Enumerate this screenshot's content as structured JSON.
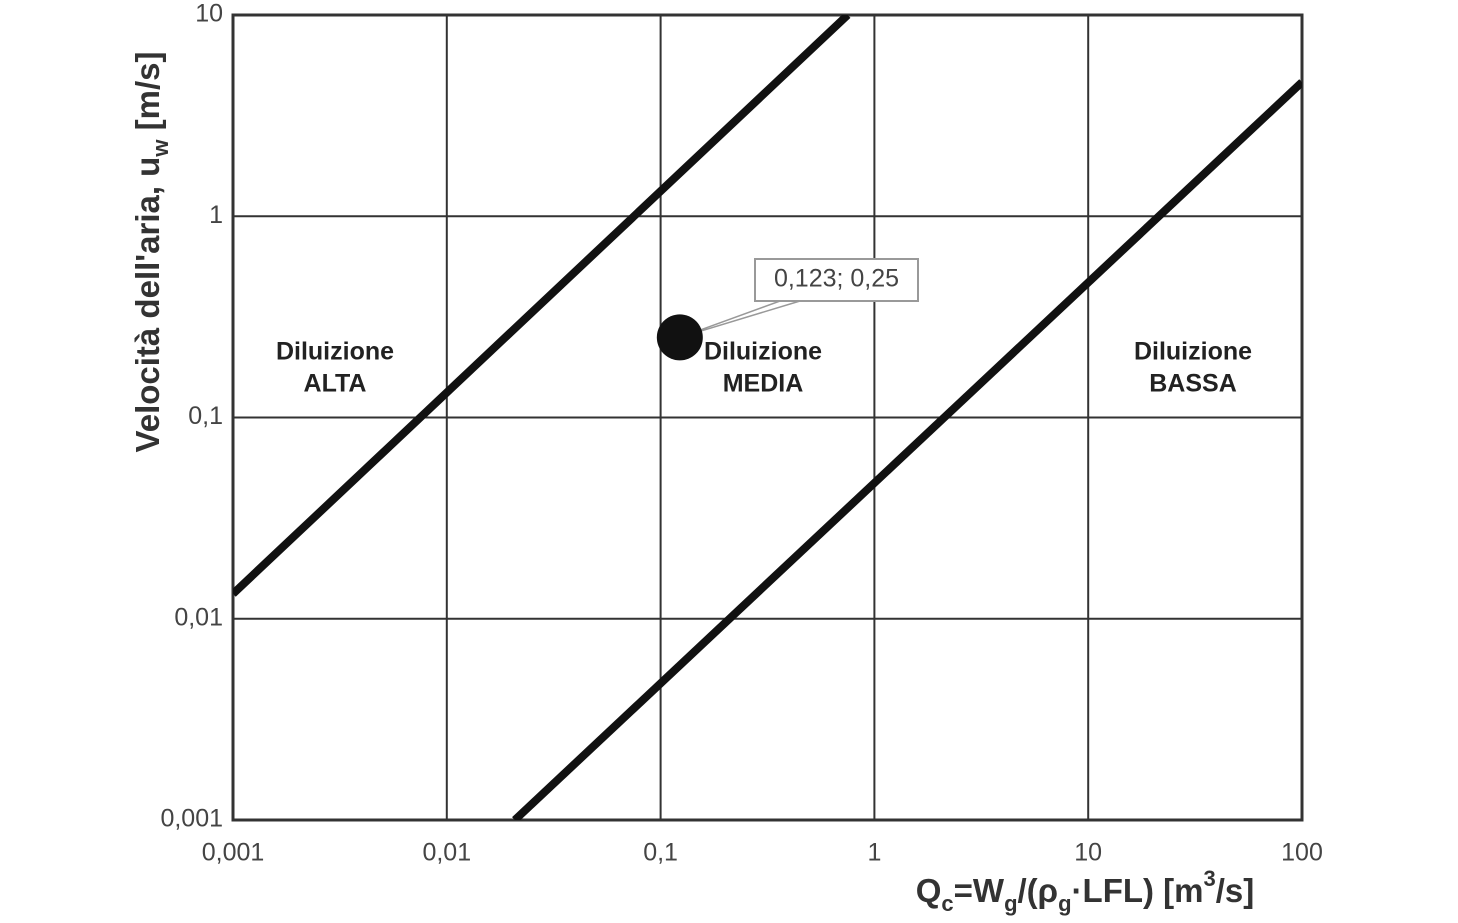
{
  "chart_data": {
    "type": "line",
    "xlog": true,
    "ylog": true,
    "grid": true,
    "xlim": [
      0.001,
      100
    ],
    "ylim": [
      0.001,
      10
    ],
    "xticks": [
      {
        "value": 0.001,
        "label": "0,001"
      },
      {
        "value": 0.01,
        "label": "0,01"
      },
      {
        "value": 0.1,
        "label": "0,1"
      },
      1,
      10,
      100
    ],
    "yticks": [
      {
        "value": 0.001,
        "label": "0,001"
      },
      {
        "value": 0.01,
        "label": "0,01"
      },
      {
        "value": 0.1,
        "label": "0,1"
      },
      1,
      10
    ],
    "xlabel": [
      {
        "text": "Q"
      },
      {
        "text": "c",
        "style": "sub"
      },
      {
        "text": "=W"
      },
      {
        "text": "g",
        "style": "sub"
      },
      {
        "text": "/(ρ"
      },
      {
        "text": "g",
        "style": "sub"
      },
      {
        "text": "·LFL) [m"
      },
      {
        "text": "3",
        "style": "super"
      },
      {
        "text": "/s]"
      }
    ],
    "ylabel": [
      {
        "text": "Velocità dell'aria, u"
      },
      {
        "text": "w",
        "style": "sub"
      },
      {
        "text": " [m/s]"
      }
    ],
    "series": [
      {
        "color": "#111111",
        "x": [
          0.001,
          0.75
        ],
        "values": [
          0.0133,
          10
        ]
      },
      {
        "color": "#111111",
        "x": [
          0.0208,
          100
        ],
        "values": [
          0.001,
          4.64
        ]
      }
    ],
    "points": [
      {
        "x": 0.123,
        "y": 0.25,
        "label": "0,123; 0,25",
        "color": "#111111"
      }
    ],
    "annotations": [
      {
        "lines": [
          "Diluizione",
          "ALTA"
        ]
      },
      {
        "lines": [
          "Diluizione",
          "MEDIA"
        ]
      },
      {
        "lines": [
          "Diluizione",
          "BASSA"
        ]
      }
    ]
  }
}
